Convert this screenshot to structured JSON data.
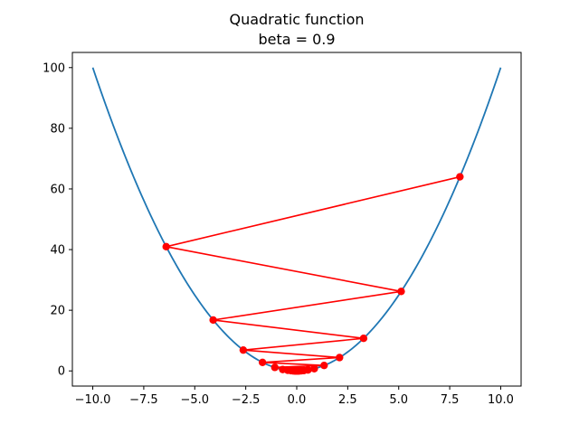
{
  "chart_data": {
    "type": "line",
    "title": "Quadratic function",
    "subtitle": "beta = 0.9",
    "xlabel": "",
    "ylabel": "",
    "xlim": [
      -11.0,
      11.0
    ],
    "ylim": [
      -5.0,
      105.0
    ],
    "x_ticks": [
      -10.0,
      -7.5,
      -5.0,
      -2.5,
      0.0,
      2.5,
      5.0,
      7.5,
      10.0
    ],
    "x_tick_labels": [
      "−10.0",
      "−7.5",
      "−5.0",
      "−2.5",
      "0.0",
      "2.5",
      "5.0",
      "7.5",
      "10.0"
    ],
    "y_ticks": [
      0,
      20,
      40,
      60,
      80,
      100
    ],
    "y_tick_labels": [
      "0",
      "20",
      "40",
      "60",
      "80",
      "100"
    ],
    "grid": false,
    "series": [
      {
        "kind": "curve",
        "function": "y = x^2",
        "x_range": [
          -10,
          10
        ],
        "color": "#1f77b4"
      },
      {
        "kind": "iterates",
        "color": "#ff0000",
        "x": [
          8.0,
          -6.4,
          5.12,
          -4.096,
          3.2768,
          -2.62144,
          2.097152,
          -1.6777216,
          1.34217728,
          -1.073741824,
          0.8589934592,
          -0.68719476736,
          0.549755813888,
          -0.4398046511104,
          0.35184372088832,
          -0.281474976710656,
          0.2251799813685248,
          -0.18014398509481985,
          0.14411518807585588,
          -0.1152921504606847,
          0.09223372036854777,
          -0.07378697629483821,
          0.05902958103587057,
          -0.04722366482869646,
          0.037778931862957166,
          -0.030223145490365734
        ],
        "y": [
          64.0,
          40.96,
          26.2144,
          16.777216,
          10.73741824,
          6.8719476736,
          4.398046511104,
          2.81474976710656,
          1.8014398509481984,
          1.152921504606847,
          0.7378697629483821,
          0.47223664828696454,
          0.3022314549036573,
          0.1934281311383407,
          0.12379400392853804,
          0.07922816251426434,
          0.05070602400912918,
          0.03245185536584267,
          0.020769187434139313,
          0.01329227995784916,
          0.008507059173023463,
          0.005444517870735015,
          0.003484491437270409,
          0.0022300745198530624,
          0.0014272476927059598,
          0.0009134385233318143
        ]
      }
    ]
  }
}
